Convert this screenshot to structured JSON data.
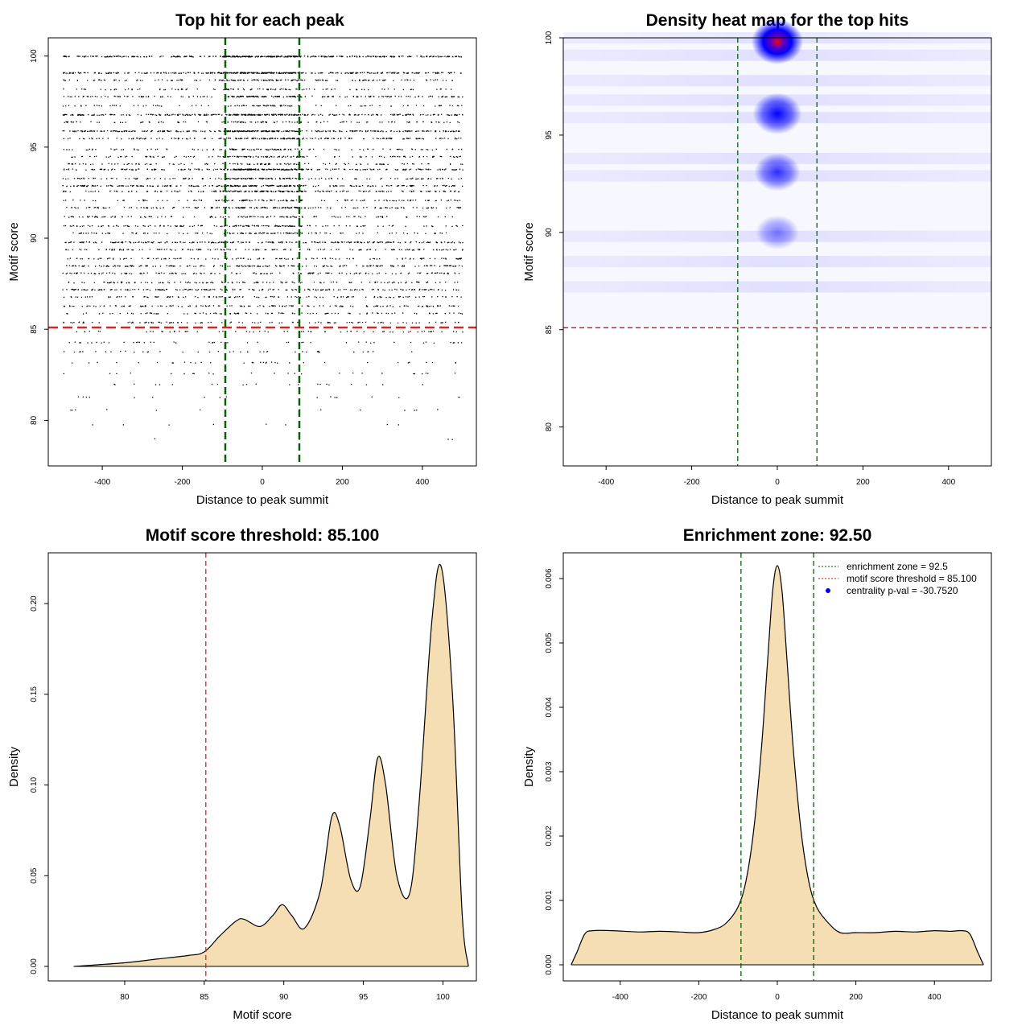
{
  "colors": {
    "green": "#006400",
    "red": "#ff0000",
    "fill": "#f5deb3",
    "blue": "#0000ff"
  },
  "chart_data": [
    {
      "type": "scatter",
      "title": "Top hit for each peak",
      "xlabel": "Distance to peak summit",
      "ylabel": "Motif score",
      "xlim": [
        -535,
        535
      ],
      "ylim": [
        77.5,
        101
      ],
      "xticks": [
        "-400",
        "-200",
        "0",
        "200",
        "400"
      ],
      "yticks": [
        "80",
        "85",
        "90",
        "95",
        "100"
      ],
      "enrichment_bounds": [
        -92.5,
        92.5
      ],
      "threshold": 85.1,
      "x_range": [
        -500,
        500
      ],
      "score_levels": [
        {
          "score": 100,
          "weight": 1.0
        },
        {
          "score": 99.1,
          "weight": 0.95
        },
        {
          "score": 98.7,
          "weight": 0.4
        },
        {
          "score": 98.2,
          "weight": 0.25
        },
        {
          "score": 97.8,
          "weight": 0.5
        },
        {
          "score": 97.3,
          "weight": 0.25
        },
        {
          "score": 96.8,
          "weight": 0.8
        },
        {
          "score": 96.4,
          "weight": 0.3
        },
        {
          "score": 95.9,
          "weight": 0.85
        },
        {
          "score": 95.5,
          "weight": 0.5
        },
        {
          "score": 94.9,
          "weight": 0.3
        },
        {
          "score": 94.5,
          "weight": 0.35
        },
        {
          "score": 94.1,
          "weight": 0.3
        },
        {
          "score": 93.8,
          "weight": 0.7
        },
        {
          "score": 93.3,
          "weight": 0.4
        },
        {
          "score": 92.9,
          "weight": 0.7
        },
        {
          "score": 92.6,
          "weight": 0.55
        },
        {
          "score": 92.1,
          "weight": 0.35
        },
        {
          "score": 91.7,
          "weight": 0.45
        },
        {
          "score": 91.2,
          "weight": 0.3
        },
        {
          "score": 90.7,
          "weight": 0.4
        },
        {
          "score": 90.3,
          "weight": 0.3
        },
        {
          "score": 89.8,
          "weight": 0.55
        },
        {
          "score": 89.4,
          "weight": 0.35
        },
        {
          "score": 88.9,
          "weight": 0.3
        },
        {
          "score": 88.5,
          "weight": 0.45
        },
        {
          "score": 88.1,
          "weight": 0.35
        },
        {
          "score": 87.6,
          "weight": 0.3
        },
        {
          "score": 87.2,
          "weight": 0.45
        },
        {
          "score": 86.8,
          "weight": 0.3
        },
        {
          "score": 86.3,
          "weight": 0.35
        },
        {
          "score": 85.9,
          "weight": 0.25
        },
        {
          "score": 85.4,
          "weight": 0.25
        },
        {
          "score": 84.9,
          "weight": 0.15
        },
        {
          "score": 84.3,
          "weight": 0.12
        },
        {
          "score": 83.8,
          "weight": 0.1
        },
        {
          "score": 83.2,
          "weight": 0.08
        },
        {
          "score": 82.6,
          "weight": 0.06
        },
        {
          "score": 82.0,
          "weight": 0.05
        },
        {
          "score": 81.3,
          "weight": 0.04
        },
        {
          "score": 80.6,
          "weight": 0.03
        },
        {
          "score": 79.8,
          "weight": 0.02
        },
        {
          "score": 79.0,
          "weight": 0.01
        }
      ]
    },
    {
      "type": "heatmap",
      "title": "Density heat map for the top hits",
      "xlabel": "Distance to peak summit",
      "ylabel": "Motif score",
      "xlim": [
        -500,
        500
      ],
      "ylim": [
        78,
        100
      ],
      "xticks": [
        "-400",
        "-200",
        "0",
        "200",
        "400"
      ],
      "yticks": [
        "80",
        "85",
        "90",
        "95",
        "100"
      ],
      "enrichment_bounds": [
        -92.5,
        92.5
      ],
      "threshold": 85.1,
      "hotspots": [
        {
          "x": 0,
          "y": 99.8,
          "intensity": 1.0
        },
        {
          "x": 0,
          "y": 96.1,
          "intensity": 0.72
        },
        {
          "x": 0,
          "y": 93.1,
          "intensity": 0.45
        },
        {
          "x": 0,
          "y": 90.0,
          "intensity": 0.15
        }
      ],
      "background_bands": [
        100,
        99.1,
        97.8,
        96.8,
        95.9,
        93.8,
        92.9,
        89.8,
        88.5,
        87.2
      ],
      "colors": [
        "#ffffff",
        "#0000ff",
        "#ff0000"
      ]
    },
    {
      "type": "area",
      "title": "Motif score threshold: 85.100",
      "xlabel": "Motif score",
      "ylabel": "Density",
      "xlim": [
        75.2,
        102.1
      ],
      "ylim": [
        -0.008,
        0.228
      ],
      "xticks": [
        "80",
        "85",
        "90",
        "95",
        "100"
      ],
      "yticks": [
        "0.00",
        "0.05",
        "0.10",
        "0.15",
        "0.20"
      ],
      "threshold": 85.1,
      "x": [
        76.8,
        80,
        82,
        84,
        85,
        86,
        87,
        87.5,
        88.5,
        89.3,
        89.9,
        90.5,
        91.3,
        92.3,
        93,
        93.5,
        94.2,
        94.8,
        95.4,
        95.9,
        96.4,
        97.1,
        97.9,
        98.5,
        99.3,
        99.9,
        100.6,
        101.2,
        101.6
      ],
      "y": [
        0.0,
        0.002,
        0.004,
        0.006,
        0.008,
        0.017,
        0.025,
        0.026,
        0.022,
        0.028,
        0.034,
        0.028,
        0.021,
        0.042,
        0.082,
        0.078,
        0.048,
        0.044,
        0.08,
        0.115,
        0.1,
        0.05,
        0.04,
        0.09,
        0.19,
        0.22,
        0.15,
        0.03,
        0.0
      ]
    },
    {
      "type": "area",
      "title": "Enrichment zone: 92.50",
      "xlabel": "Distance to peak summit",
      "ylabel": "Density",
      "xlim": [
        -545,
        545
      ],
      "ylim": [
        -0.00025,
        0.0064
      ],
      "xticks": [
        "-400",
        "-200",
        "0",
        "200",
        "400"
      ],
      "yticks": [
        "0.000",
        "0.001",
        "0.002",
        "0.003",
        "0.004",
        "0.005",
        "0.006"
      ],
      "enrichment_bounds": [
        -92.5,
        92.5
      ],
      "x": [
        -525,
        -510,
        -490,
        -470,
        -420,
        -350,
        -300,
        -250,
        -200,
        -160,
        -130,
        -100,
        -80,
        -60,
        -40,
        -25,
        -12,
        0,
        12,
        25,
        40,
        60,
        80,
        100,
        130,
        160,
        200,
        250,
        300,
        350,
        400,
        440,
        470,
        490,
        510,
        525
      ],
      "y": [
        0.0,
        0.0002,
        0.00048,
        0.00053,
        0.00053,
        0.00051,
        0.00052,
        0.00051,
        0.0005,
        0.00055,
        0.00065,
        0.0009,
        0.0013,
        0.0021,
        0.0034,
        0.0047,
        0.0058,
        0.0062,
        0.0058,
        0.0047,
        0.0034,
        0.0021,
        0.0013,
        0.0009,
        0.00065,
        0.0005,
        0.0005,
        0.0005,
        0.00052,
        0.00051,
        0.00053,
        0.00052,
        0.00053,
        0.00048,
        0.0002,
        0.0
      ],
      "legend": [
        {
          "label": "enrichment zone = 92.5",
          "color": "#006400",
          "style": "dotted-line"
        },
        {
          "label": "motif score threshold = 85.100",
          "color": "#ff0000",
          "style": "dotted-line"
        },
        {
          "label": "centrality p-val = -30.7520",
          "color": "#0000ff",
          "style": "point"
        }
      ]
    }
  ]
}
